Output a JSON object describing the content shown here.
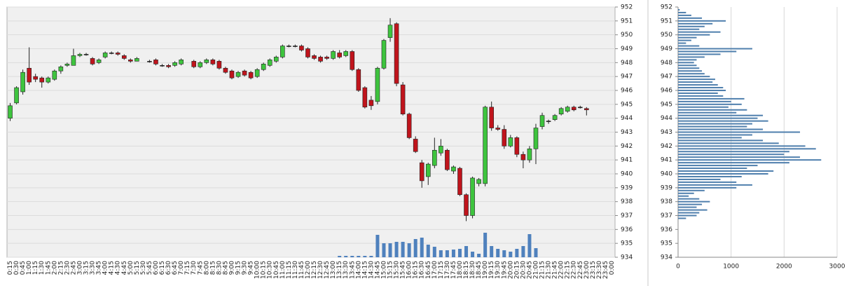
{
  "chart_data": [
    {
      "type": "candlestick",
      "categories": [
        "0:15",
        "0:30",
        "0:45",
        "1:00",
        "1:15",
        "1:30",
        "1:45",
        "2:00",
        "2:15",
        "2:30",
        "2:45",
        "3:00",
        "3:15",
        "3:30",
        "3:45",
        "4:00",
        "4:15",
        "4:30",
        "4:45",
        "5:00",
        "5:15",
        "5:30",
        "5:45",
        "6:00",
        "6:15",
        "6:30",
        "6:45",
        "7:00",
        "7:15",
        "7:30",
        "7:45",
        "8:00",
        "8:15",
        "8:30",
        "8:45",
        "9:00",
        "9:15",
        "9:30",
        "9:45",
        "10:00",
        "10:15",
        "10:30",
        "10:45",
        "11:00",
        "11:15",
        "11:30",
        "11:45",
        "12:00",
        "12:15",
        "12:30",
        "12:45",
        "13:00",
        "13:15",
        "13:30",
        "13:45",
        "14:00",
        "14:15",
        "14:30",
        "14:45",
        "15:00",
        "15:15",
        "15:30",
        "15:45",
        "16:00",
        "16:15",
        "16:30",
        "16:45",
        "17:00",
        "17:15",
        "17:30",
        "17:45",
        "18:00",
        "18:15",
        "18:30",
        "18:45",
        "19:00",
        "19:15",
        "19:30",
        "19:45",
        "20:00",
        "20:15",
        "20:30",
        "20:45",
        "21:00",
        "21:15",
        "21:30",
        "21:45",
        "22:00",
        "22:15",
        "22:30",
        "22:45",
        "23:00",
        "23:15",
        "23:30",
        "23:45",
        "0:00"
      ],
      "open": [
        944.0,
        945.1,
        945.9,
        947.6,
        947.0,
        946.9,
        946.6,
        946.8,
        947.4,
        947.8,
        947.8,
        948.5,
        948.6,
        948.3,
        948.0,
        948.4,
        948.7,
        948.7,
        948.5,
        948.2,
        948.1,
        null,
        948.1,
        948.2,
        947.8,
        947.8,
        947.8,
        947.9,
        null,
        948.1,
        947.7,
        948.0,
        948.2,
        948.1,
        947.6,
        947.4,
        947.0,
        947.4,
        947.3,
        947.0,
        947.5,
        947.8,
        948.1,
        948.4,
        949.2,
        949.2,
        949.2,
        949.0,
        948.5,
        948.4,
        948.4,
        948.3,
        948.7,
        948.5,
        948.8,
        947.5,
        946.2,
        945.3,
        945.2,
        947.6,
        949.8,
        950.8,
        946.4,
        944.3,
        942.5,
        940.8,
        939.8,
        940.6,
        941.5,
        941.7,
        940.2,
        940.4,
        938.5,
        937.0,
        939.3,
        939.3,
        944.8,
        943.3,
        943.2,
        942.0,
        942.6,
        941.4,
        941.0,
        941.8,
        943.4,
        943.8,
        943.9,
        944.3,
        944.5,
        944.8,
        944.8,
        944.7,
        null,
        null,
        null,
        null
      ],
      "high": [
        945.1,
        946.3,
        947.5,
        949.1,
        947.2,
        947.0,
        947.0,
        947.5,
        947.8,
        948.0,
        949.0,
        948.7,
        948.7,
        948.4,
        948.3,
        948.8,
        948.8,
        948.8,
        948.6,
        948.3,
        948.4,
        null,
        948.2,
        948.3,
        947.9,
        947.9,
        948.1,
        948.3,
        null,
        948.2,
        948.1,
        948.3,
        948.3,
        948.2,
        947.7,
        947.5,
        947.4,
        947.5,
        947.4,
        947.6,
        948.0,
        948.3,
        948.5,
        949.3,
        949.3,
        949.3,
        949.3,
        949.1,
        948.6,
        948.5,
        948.5,
        948.9,
        948.9,
        948.9,
        948.9,
        947.6,
        946.3,
        945.6,
        947.7,
        949.7,
        951.2,
        950.9,
        946.6,
        944.4,
        942.7,
        941.0,
        940.8,
        942.6,
        942.5,
        941.8,
        940.6,
        940.5,
        938.6,
        939.8,
        939.7,
        944.9,
        945.2,
        943.5,
        943.5,
        942.8,
        942.7,
        941.6,
        942.0,
        943.6,
        944.4,
        943.9,
        944.3,
        944.8,
        944.9,
        944.9,
        944.9,
        944.8,
        null,
        null,
        null,
        null
      ],
      "low": [
        943.8,
        945.0,
        945.7,
        946.4,
        946.6,
        946.2,
        946.5,
        946.7,
        947.2,
        947.7,
        947.8,
        948.4,
        948.5,
        947.8,
        947.9,
        948.3,
        948.6,
        948.5,
        948.2,
        948.0,
        948.1,
        null,
        948.0,
        947.8,
        947.7,
        947.6,
        947.7,
        947.8,
        null,
        947.6,
        947.6,
        947.9,
        947.8,
        947.5,
        947.2,
        946.8,
        946.9,
        947.0,
        946.8,
        946.9,
        947.4,
        947.7,
        948.0,
        948.3,
        949.1,
        949.1,
        948.8,
        948.3,
        948.2,
        948.0,
        948.2,
        948.2,
        948.3,
        948.4,
        947.4,
        945.9,
        944.7,
        944.6,
        945.0,
        947.5,
        949.5,
        946.3,
        944.2,
        942.5,
        941.5,
        939.0,
        939.2,
        940.4,
        941.3,
        940.2,
        940.0,
        938.4,
        936.6,
        936.8,
        939.1,
        939.1,
        943.1,
        943.1,
        941.8,
        941.9,
        941.2,
        940.4,
        940.8,
        940.7,
        943.2,
        943.6,
        943.8,
        944.2,
        944.4,
        944.5,
        944.7,
        944.2,
        null,
        null,
        null,
        null
      ],
      "close": [
        944.9,
        946.2,
        947.3,
        946.6,
        946.8,
        946.6,
        946.9,
        947.4,
        947.7,
        947.9,
        948.5,
        948.6,
        948.6,
        947.9,
        948.2,
        948.7,
        948.7,
        948.6,
        948.3,
        948.1,
        948.3,
        null,
        948.1,
        947.9,
        947.8,
        947.7,
        948.0,
        948.2,
        null,
        947.7,
        948.0,
        948.2,
        947.9,
        947.6,
        947.3,
        946.9,
        947.3,
        947.1,
        946.9,
        947.5,
        947.9,
        948.2,
        948.4,
        949.2,
        949.2,
        949.2,
        948.9,
        948.4,
        948.3,
        948.1,
        948.3,
        948.8,
        948.4,
        948.8,
        947.5,
        946.0,
        944.8,
        944.9,
        947.6,
        949.6,
        950.7,
        946.5,
        944.3,
        942.6,
        941.6,
        939.5,
        940.7,
        941.7,
        942.0,
        940.3,
        940.5,
        938.5,
        937.0,
        939.7,
        939.6,
        944.8,
        943.3,
        943.2,
        942.0,
        942.6,
        941.4,
        941.0,
        941.8,
        943.3,
        944.2,
        943.8,
        944.2,
        944.7,
        944.8,
        944.6,
        944.8,
        944.6,
        null,
        null,
        null,
        null
      ],
      "volume": [
        null,
        null,
        null,
        null,
        null,
        null,
        null,
        null,
        null,
        null,
        null,
        null,
        null,
        null,
        null,
        null,
        null,
        null,
        null,
        null,
        null,
        null,
        null,
        null,
        null,
        null,
        null,
        null,
        null,
        null,
        null,
        null,
        null,
        null,
        null,
        null,
        null,
        null,
        null,
        null,
        null,
        null,
        null,
        null,
        null,
        null,
        null,
        null,
        null,
        null,
        null,
        null,
        2,
        2,
        2,
        2,
        2,
        2,
        32,
        20,
        20,
        22,
        22,
        20,
        26,
        28,
        18,
        15,
        10,
        10,
        11,
        12,
        16,
        8,
        5,
        35,
        16,
        12,
        10,
        8,
        12,
        16,
        33,
        13,
        null,
        null,
        null,
        null,
        null,
        null,
        null,
        null,
        null,
        null,
        null,
        null
      ],
      "ylim": [
        934,
        952
      ],
      "yticks": [
        934,
        935,
        936,
        937,
        938,
        939,
        940,
        941,
        942,
        943,
        944,
        945,
        946,
        947,
        948,
        949,
        950,
        951,
        952
      ],
      "up_color": "#3ec43e",
      "down_color": "#c0141c",
      "volume_color": "#4f81bd",
      "grid": true
    },
    {
      "type": "barh",
      "categories": [
        951.8,
        951.6,
        951.4,
        951.2,
        951.0,
        950.8,
        950.6,
        950.4,
        950.2,
        950.0,
        949.8,
        949.6,
        949.4,
        949.2,
        949.0,
        948.8,
        948.6,
        948.4,
        948.2,
        948.0,
        947.8,
        947.6,
        947.4,
        947.2,
        947.0,
        946.8,
        946.6,
        946.4,
        946.2,
        946.0,
        945.8,
        945.6,
        945.4,
        945.2,
        945.0,
        944.8,
        944.6,
        944.4,
        944.2,
        944.0,
        943.8,
        943.6,
        943.4,
        943.2,
        943.0,
        942.8,
        942.6,
        942.4,
        942.2,
        942.0,
        941.8,
        941.6,
        941.4,
        941.2,
        941.0,
        940.8,
        940.6,
        940.4,
        940.2,
        940.0,
        939.8,
        939.6,
        939.4,
        939.2,
        939.0,
        938.8,
        938.6,
        938.4,
        938.2,
        938.0,
        937.8,
        937.6,
        937.4,
        937.2,
        937.0,
        936.8
      ],
      "values": [
        30,
        150,
        250,
        450,
        900,
        650,
        500,
        400,
        800,
        600,
        350,
        250,
        150,
        400,
        1400,
        1100,
        800,
        500,
        350,
        300,
        350,
        400,
        450,
        500,
        600,
        700,
        650,
        750,
        850,
        900,
        750,
        850,
        1250,
        1000,
        1200,
        950,
        1300,
        1100,
        1600,
        1500,
        1700,
        1400,
        1300,
        1600,
        2300,
        1400,
        1200,
        1600,
        1900,
        2400,
        2600,
        2100,
        2000,
        2300,
        2700,
        2100,
        1500,
        1300,
        1800,
        1700,
        1200,
        800,
        1100,
        1400,
        1100,
        500,
        300,
        200,
        400,
        600,
        450,
        350,
        550,
        400,
        350,
        150
      ],
      "xlim": [
        0,
        3000
      ],
      "xticks": [
        0,
        1000,
        2000,
        3000
      ],
      "ylim": [
        934,
        952
      ],
      "yticks": [
        934,
        935,
        936,
        937,
        938,
        939,
        940,
        941,
        942,
        943,
        944,
        945,
        946,
        947,
        948,
        949,
        950,
        951,
        952
      ],
      "color": "#4f7fad",
      "grid": true
    }
  ]
}
